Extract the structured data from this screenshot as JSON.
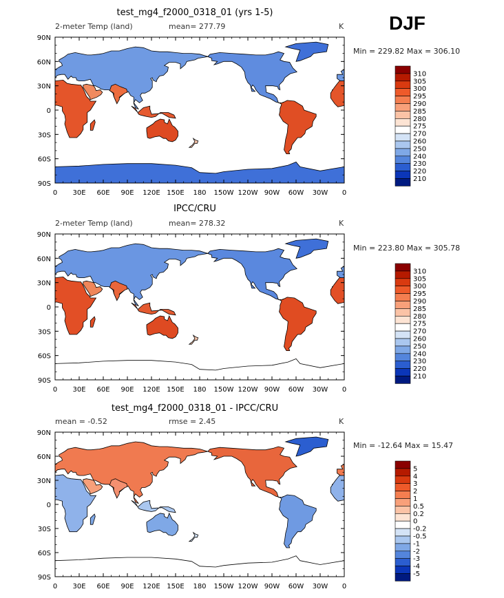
{
  "season": "DJF",
  "chart_data": [
    {
      "type": "heatmap",
      "title": "test_mg4_f2000_0318_01 (yrs 1-5)",
      "left_label": "2-meter Temp (land)",
      "stats": "mean= 277.79",
      "units": "K",
      "minmax": "Min = 229.82 Max = 306.10",
      "lat_ticks": [
        "90N",
        "60N",
        "30N",
        "0",
        "30S",
        "60S",
        "90S"
      ],
      "lon_ticks": [
        "0",
        "30E",
        "60E",
        "90E",
        "120E",
        "150E",
        "180",
        "150W",
        "120W",
        "90W",
        "60W",
        "30W",
        "0"
      ],
      "colorbar": {
        "labels": [
          "310",
          "305",
          "300",
          "295",
          "290",
          "285",
          "280",
          "275",
          "270",
          "260",
          "250",
          "240",
          "230",
          "220",
          "210"
        ],
        "colors": [
          "#8a0000",
          "#b51a00",
          "#d93a10",
          "#ee5a2a",
          "#f47e50",
          "#f8a07a",
          "#fbc3a6",
          "#fde4d4",
          "#ffffff",
          "#d4e3f6",
          "#aac7ef",
          "#7fa8e6",
          "#5485dc",
          "#2b5ed0",
          "#0b36b8",
          "#001a80"
        ]
      },
      "fields": {
        "eurasia": "#6f9ae2",
        "north_america": "#5f8cdf",
        "greenland": "#3f70d8",
        "antarctica": "#3f70d8",
        "africa": "#e4552a",
        "south_america": "#e04e24",
        "australia": "#de4a22",
        "india": "#ec6c3e",
        "sahara": "#f5a07c",
        "se_asia": "#e65a30",
        "madagascar": "#e4552a",
        "new_zealand": "#fcc8ae",
        "arabia": "#f08a5e"
      }
    },
    {
      "type": "heatmap",
      "title": "IPCC/CRU",
      "left_label": "2-meter Temp (land)",
      "stats": "mean= 278.32",
      "units": "K",
      "minmax": "Min = 223.80 Max = 305.78",
      "lat_ticks": [
        "90N",
        "60N",
        "30N",
        "0",
        "30S",
        "60S",
        "90S"
      ],
      "lon_ticks": [
        "0",
        "30E",
        "60E",
        "90E",
        "120E",
        "150E",
        "180",
        "150W",
        "120W",
        "90W",
        "60W",
        "30W",
        "0"
      ],
      "colorbar": {
        "labels": [
          "310",
          "305",
          "300",
          "295",
          "290",
          "285",
          "280",
          "275",
          "270",
          "260",
          "250",
          "240",
          "230",
          "220",
          "210"
        ],
        "colors": [
          "#8a0000",
          "#b51a00",
          "#d93a10",
          "#ee5a2a",
          "#f47e50",
          "#f8a07a",
          "#fbc3a6",
          "#fde4d4",
          "#ffffff",
          "#d4e3f6",
          "#aac7ef",
          "#7fa8e6",
          "#5485dc",
          "#2b5ed0",
          "#0b36b8",
          "#001a80"
        ]
      },
      "fields": {
        "eurasia": "#6a96e2",
        "north_america": "#5a88de",
        "greenland": "#3f70d8",
        "antarctica": "none",
        "africa": "#e24f26",
        "south_america": "#e04c22",
        "australia": "#de4a22",
        "india": "#ea663a",
        "sahara": "#f39a74",
        "se_asia": "#e45a30",
        "madagascar": "#e24f26",
        "new_zealand": "#fcc8ae",
        "arabia": "#ef865a"
      }
    },
    {
      "type": "heatmap",
      "title": "test_mg4_f2000_0318_01 - IPCC/CRU",
      "left_label": "mean =   -0.52",
      "stats": "rmse =    2.45",
      "units": "K",
      "minmax": "Min = -12.64 Max =  15.47",
      "lat_ticks": [
        "90N",
        "60N",
        "30N",
        "0",
        "30S",
        "60S",
        "90S"
      ],
      "lon_ticks": [
        "0",
        "30E",
        "60E",
        "90E",
        "120E",
        "150E",
        "180",
        "150W",
        "120W",
        "90W",
        "60W",
        "30W",
        "0"
      ],
      "colorbar": {
        "labels": [
          "5",
          "4",
          "3",
          "2",
          "1",
          "0.5",
          "0.2",
          "0",
          "-0.2",
          "-0.5",
          "-1",
          "-2",
          "-3",
          "-4",
          "-5"
        ],
        "colors": [
          "#8a0000",
          "#b51a00",
          "#d93a10",
          "#ee5a2a",
          "#f47e50",
          "#f8a07a",
          "#fbc3a6",
          "#fde4d4",
          "#ffffff",
          "#d4e3f6",
          "#aac7ef",
          "#7fa8e6",
          "#5485dc",
          "#2b5ed0",
          "#0b36b8",
          "#001a80"
        ]
      },
      "fields": {
        "eurasia": "#f07a50",
        "north_america": "#e8663c",
        "greenland": "#2b5ed0",
        "antarctica": "none",
        "africa": "#8fb2ea",
        "south_america": "#6f9ae2",
        "australia": "#7fa8e6",
        "india": "#f49070",
        "sahara": "#5485dc",
        "se_asia": "#aac7ef",
        "madagascar": "#7fa8e6",
        "new_zealand": "#d4e3f6",
        "arabia": "#f8a07a"
      }
    }
  ]
}
